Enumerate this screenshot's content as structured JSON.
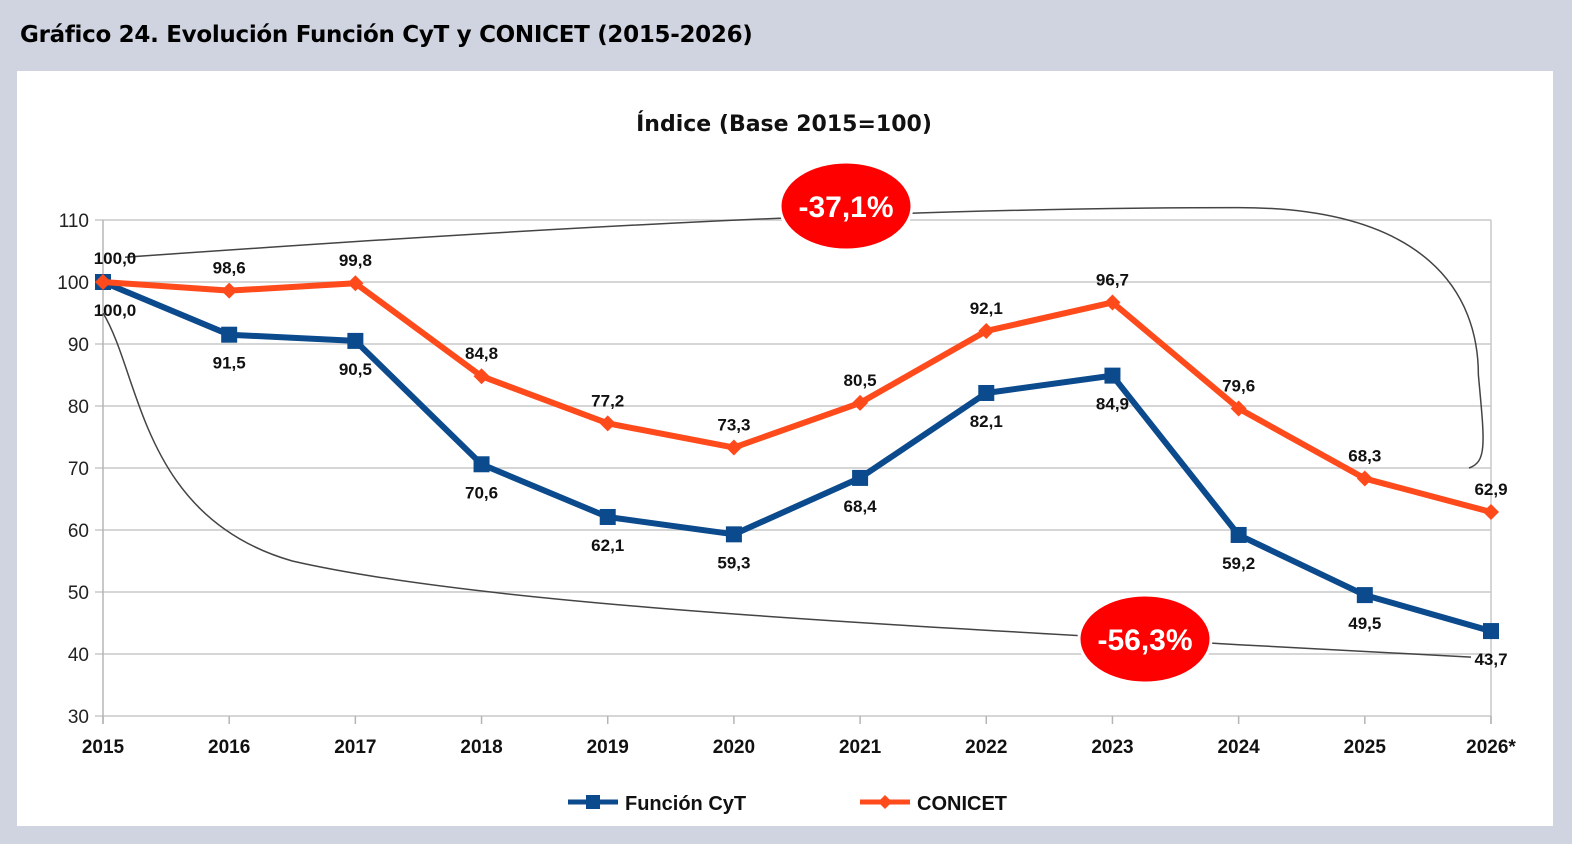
{
  "page": {
    "heading": "Gráfico 24. Evolución Función CyT y CONICET (2015-2026)"
  },
  "chart_data": {
    "type": "line",
    "title": "Índice (Base 2015=100)",
    "xlabel": "",
    "ylabel": "",
    "categories": [
      "2015",
      "2016",
      "2017",
      "2018",
      "2019",
      "2020",
      "2021",
      "2022",
      "2023",
      "2024",
      "2025",
      "2026*"
    ],
    "ylim": [
      30,
      110
    ],
    "yticks": [
      30,
      40,
      50,
      60,
      70,
      80,
      90,
      100,
      110
    ],
    "grid": true,
    "legend_position": "bottom-center",
    "series": [
      {
        "name": "Función CyT",
        "color": "#0b4a8c",
        "marker": "square",
        "label_position": "below",
        "values": [
          100.0,
          91.5,
          90.5,
          70.6,
          62.1,
          59.3,
          68.4,
          82.1,
          84.9,
          59.2,
          49.5,
          43.7
        ],
        "labels": [
          "100,0",
          "91,5",
          "90,5",
          "70,6",
          "62,1",
          "59,3",
          "68,4",
          "82,1",
          "84,9",
          "59,2",
          "49,5",
          "43,7"
        ]
      },
      {
        "name": "CONICET",
        "color": "#ff4a1c",
        "marker": "diamond",
        "label_position": "above",
        "values": [
          100.0,
          98.6,
          99.8,
          84.8,
          77.2,
          73.3,
          80.5,
          92.1,
          96.7,
          79.6,
          68.3,
          62.9
        ],
        "labels": [
          "100,0",
          "98,6",
          "99,8",
          "84,8",
          "77,2",
          "73,3",
          "80,5",
          "92,1",
          "96,7",
          "79,6",
          "68,3",
          "62,9"
        ]
      }
    ],
    "annotations": [
      {
        "text": "-37,1%",
        "series": "CONICET",
        "from": "2015",
        "to": "2026*",
        "color": "#ff0000"
      },
      {
        "text": "-56,3%",
        "series": "Función CyT",
        "from": "2015",
        "to": "2026*",
        "color": "#ff0000"
      }
    ]
  }
}
